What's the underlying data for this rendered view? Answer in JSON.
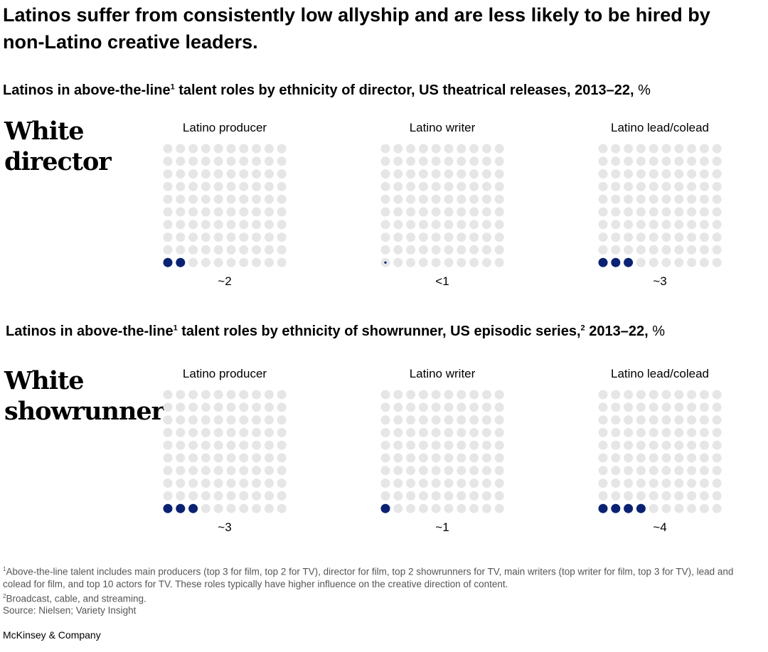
{
  "title": "Latinos suffer from consistently low allyship and are less likely to be hired by non-Latino creative leaders.",
  "chart_data": [
    {
      "type": "waffle",
      "title": "Latinos in above-the-line talent roles by ethnicity of director, US theatrical releases, 2013–22,",
      "title_sup": "1",
      "unit": "%",
      "row_label": "White director",
      "grid": "10x10",
      "panels": [
        {
          "label": "Latino producer",
          "value": 2,
          "value_label": "~2"
        },
        {
          "label": "Latino writer",
          "value": 0.5,
          "value_label": "<1"
        },
        {
          "label": "Latino lead/colead",
          "value": 3,
          "value_label": "~3"
        }
      ]
    },
    {
      "type": "waffle",
      "title": "Latinos in above-the-line talent roles by ethnicity of showrunner, US episodic series, 2013–22,",
      "title_sup": "1",
      "title_sup2": "2",
      "unit": "%",
      "row_label": "White showrunner",
      "grid": "10x10",
      "panels": [
        {
          "label": "Latino producer",
          "value": 3,
          "value_label": "~3"
        },
        {
          "label": "Latino writer",
          "value": 1,
          "value_label": "~1"
        },
        {
          "label": "Latino lead/colead",
          "value": 4,
          "value_label": "~4"
        }
      ]
    }
  ],
  "colors": {
    "filled": "#0b2273",
    "empty": "#e6e6e6"
  },
  "footnotes": {
    "f1": "Above-the-line talent includes main producers (top 3 for film, top 2 for TV), director for film, top 2 showrunners for TV, main writers (top writer for film, top 3 for TV), lead and colead for film, and top 10 actors for TV. These roles typically have higher influence on the creative direction of content.",
    "f2": "Broadcast, cable, and streaming.",
    "source": "Source: Nielsen; Variety Insight"
  },
  "brand": "McKinsey & Company"
}
